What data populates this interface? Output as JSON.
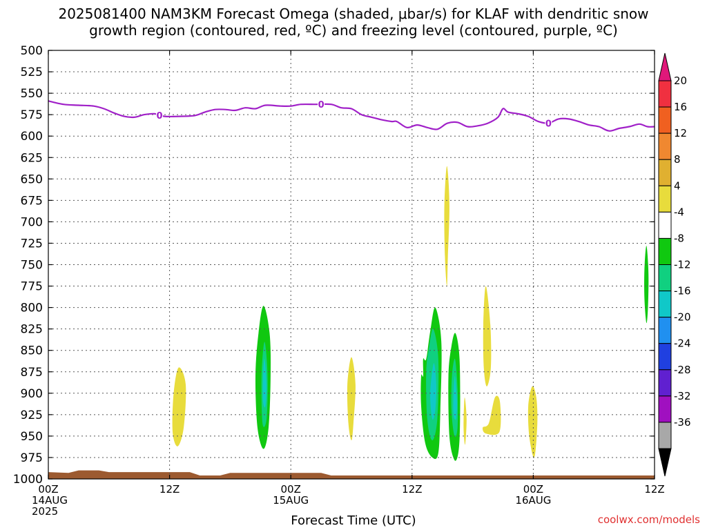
{
  "title_line1": "2025081400 NAM3KM Forecast Omega (shaded, μbar/s) for KLAF with dendritic snow",
  "title_line2": "growth region (contoured, red, ºC) and freezing level (contoured, purple, ºC)",
  "credit": "coolwx.com/models",
  "chart_data": {
    "type": "heatmap",
    "xlabel": "Forecast Time (UTC)",
    "ylabel": "",
    "x_ticks": [
      {
        "hour": 0,
        "lines": [
          "00Z",
          "14AUG",
          "2025"
        ]
      },
      {
        "hour": 12,
        "lines": [
          "12Z"
        ]
      },
      {
        "hour": 24,
        "lines": [
          "00Z",
          "15AUG"
        ]
      },
      {
        "hour": 36,
        "lines": [
          "12Z"
        ]
      },
      {
        "hour": 48,
        "lines": [
          "00Z",
          "16AUG"
        ]
      },
      {
        "hour": 60,
        "lines": [
          "12Z"
        ]
      }
    ],
    "xlim": [
      0,
      60
    ],
    "y_ticks": [
      500,
      525,
      550,
      575,
      600,
      625,
      650,
      675,
      700,
      725,
      750,
      775,
      800,
      825,
      850,
      875,
      900,
      925,
      950,
      975,
      1000
    ],
    "ylim": [
      500,
      1000
    ],
    "grid": true,
    "colorbar": {
      "labels": [
        "20",
        "16",
        "12",
        "8",
        "4",
        "-4",
        "-8",
        "-12",
        "-16",
        "-20",
        "-24",
        "-28",
        "-32",
        "-36"
      ],
      "bands": [
        {
          "from": 20,
          "to": 16,
          "color": "#f03040"
        },
        {
          "from": 16,
          "to": 12,
          "color": "#f06020"
        },
        {
          "from": 12,
          "to": 8,
          "color": "#f08830"
        },
        {
          "from": 8,
          "to": 4,
          "color": "#e0b030"
        },
        {
          "from": 4,
          "to": -4,
          "color": "#e8dc3c"
        },
        {
          "from": -4,
          "to": -8,
          "color": "#ffffff"
        },
        {
          "from": -8,
          "to": -12,
          "color": "#10c810"
        },
        {
          "from": -12,
          "to": -16,
          "color": "#10d080"
        },
        {
          "from": -16,
          "to": -20,
          "color": "#10c8c8"
        },
        {
          "from": -20,
          "to": -24,
          "color": "#2090f0"
        },
        {
          "from": -24,
          "to": -28,
          "color": "#2040e0"
        },
        {
          "from": -28,
          "to": -32,
          "color": "#6020d0"
        },
        {
          "from": -32,
          "to": -36,
          "color": "#a010c0"
        },
        {
          "from": -36,
          "to": -40,
          "color": "#a8a8a8"
        }
      ],
      "top_arrow_color": "#e0187a",
      "bottom_arrow_color": "#000000"
    },
    "freezing_level": {
      "label": "0",
      "color": "#a020c8",
      "label_hours": [
        11,
        27,
        49.5
      ],
      "points": [
        [
          0,
          559
        ],
        [
          1.5,
          563
        ],
        [
          3,
          564
        ],
        [
          4.5,
          565
        ],
        [
          5.5,
          568
        ],
        [
          6.5,
          573
        ],
        [
          7.5,
          577
        ],
        [
          8.5,
          578
        ],
        [
          9.5,
          575
        ],
        [
          10.5,
          574
        ],
        [
          11.5,
          577
        ],
        [
          13,
          577
        ],
        [
          14.5,
          576
        ],
        [
          15.5,
          572
        ],
        [
          16.5,
          569
        ],
        [
          17.5,
          569
        ],
        [
          18.5,
          570
        ],
        [
          19.5,
          567
        ],
        [
          20.5,
          568
        ],
        [
          21.5,
          564
        ],
        [
          23,
          565
        ],
        [
          24,
          565
        ],
        [
          25,
          563
        ],
        [
          26.5,
          563
        ],
        [
          28,
          563
        ],
        [
          29,
          567
        ],
        [
          30,
          568
        ],
        [
          31,
          575
        ],
        [
          32,
          578
        ],
        [
          33,
          581
        ],
        [
          34,
          583
        ],
        [
          34.5,
          583
        ],
        [
          35.5,
          590
        ],
        [
          36.5,
          587
        ],
        [
          37.5,
          590
        ],
        [
          38.5,
          592
        ],
        [
          39.5,
          585
        ],
        [
          40.5,
          584
        ],
        [
          41.5,
          589
        ],
        [
          42.5,
          588
        ],
        [
          43.5,
          585
        ],
        [
          44.5,
          578
        ],
        [
          45,
          568
        ],
        [
          45.5,
          572
        ],
        [
          46.5,
          574
        ],
        [
          47.5,
          577
        ],
        [
          48.5,
          583
        ],
        [
          49.5,
          585
        ],
        [
          50.5,
          580
        ],
        [
          51.5,
          580
        ],
        [
          52.5,
          583
        ],
        [
          53.5,
          587
        ],
        [
          54.5,
          589
        ],
        [
          55.5,
          594
        ],
        [
          56.5,
          591
        ],
        [
          57.5,
          589
        ],
        [
          58.5,
          586
        ],
        [
          59.3,
          589
        ],
        [
          60,
          589
        ]
      ]
    },
    "omega_areas": [
      {
        "color": "#e8dc3c",
        "points": [
          [
            12.9,
            870
          ],
          [
            13.6,
            890
          ],
          [
            13.4,
            940
          ],
          [
            12.8,
            962
          ],
          [
            12.3,
            945
          ],
          [
            12.4,
            900
          ]
        ]
      },
      {
        "color": "#10c810",
        "points": [
          [
            21.3,
            798
          ],
          [
            21.9,
            830
          ],
          [
            22.0,
            880
          ],
          [
            21.8,
            940
          ],
          [
            21.3,
            965
          ],
          [
            20.7,
            940
          ],
          [
            20.5,
            880
          ],
          [
            20.8,
            830
          ]
        ]
      },
      {
        "color": "#10d080",
        "points": [
          [
            21.4,
            840
          ],
          [
            21.7,
            880
          ],
          [
            21.6,
            930
          ],
          [
            21.2,
            935
          ],
          [
            21.1,
            880
          ]
        ]
      },
      {
        "color": "#10c8c8",
        "points": [
          [
            21.4,
            860
          ],
          [
            21.6,
            890
          ],
          [
            21.5,
            915
          ],
          [
            21.25,
            910
          ],
          [
            21.25,
            880
          ]
        ]
      },
      {
        "color": "#e8dc3c",
        "points": [
          [
            30.0,
            858
          ],
          [
            30.4,
            890
          ],
          [
            30.2,
            935
          ],
          [
            30.0,
            955
          ],
          [
            29.7,
            935
          ],
          [
            29.6,
            890
          ]
        ]
      },
      {
        "color": "#e8dc3c",
        "points": [
          [
            39.45,
            635
          ],
          [
            39.7,
            680
          ],
          [
            39.55,
            740
          ],
          [
            39.45,
            775
          ],
          [
            39.25,
            740
          ],
          [
            39.2,
            680
          ]
        ]
      },
      {
        "color": "#10c810",
        "points": [
          [
            37.1,
            860
          ],
          [
            37.4,
            860
          ],
          [
            37.8,
            828
          ],
          [
            38.3,
            800
          ],
          [
            38.9,
            840
          ],
          [
            38.8,
            920
          ],
          [
            38.6,
            970
          ],
          [
            38.0,
            975
          ],
          [
            37.3,
            958
          ],
          [
            36.9,
            915
          ],
          [
            36.9,
            880
          ],
          [
            37.1,
            880
          ]
        ]
      },
      {
        "color": "#10d080",
        "points": [
          [
            38.1,
            825
          ],
          [
            38.6,
            860
          ],
          [
            38.5,
            930
          ],
          [
            38.0,
            955
          ],
          [
            37.5,
            930
          ],
          [
            37.4,
            875
          ],
          [
            37.7,
            845
          ]
        ]
      },
      {
        "color": "#10c8c8",
        "points": [
          [
            38.15,
            865
          ],
          [
            38.4,
            890
          ],
          [
            38.3,
            920
          ],
          [
            38.0,
            930
          ],
          [
            37.8,
            900
          ]
        ]
      },
      {
        "color": "#10c810",
        "points": [
          [
            40.3,
            830
          ],
          [
            40.7,
            860
          ],
          [
            40.75,
            930
          ],
          [
            40.6,
            968
          ],
          [
            40.2,
            978
          ],
          [
            39.7,
            950
          ],
          [
            39.6,
            880
          ],
          [
            39.9,
            845
          ]
        ]
      },
      {
        "color": "#10d080",
        "points": [
          [
            40.25,
            860
          ],
          [
            40.5,
            895
          ],
          [
            40.5,
            940
          ],
          [
            40.2,
            950
          ],
          [
            39.9,
            920
          ],
          [
            39.95,
            880
          ]
        ]
      },
      {
        "color": "#10c8c8",
        "points": [
          [
            40.25,
            880
          ],
          [
            40.45,
            910
          ],
          [
            40.35,
            930
          ],
          [
            40.1,
            925
          ],
          [
            40.1,
            900
          ]
        ]
      },
      {
        "color": "#e8dc3c",
        "points": [
          [
            41.2,
            905
          ],
          [
            41.4,
            930
          ],
          [
            41.25,
            960
          ],
          [
            41.1,
            940
          ]
        ]
      },
      {
        "color": "#e8dc3c",
        "points": [
          [
            43.3,
            775
          ],
          [
            43.75,
            820
          ],
          [
            43.8,
            870
          ],
          [
            43.4,
            892
          ],
          [
            43.1,
            870
          ],
          [
            43.05,
            820
          ]
        ]
      },
      {
        "color": "#e8dc3c",
        "points": [
          [
            44.2,
            905
          ],
          [
            44.7,
            910
          ],
          [
            44.65,
            945
          ],
          [
            43.3,
            947
          ],
          [
            43.0,
            940
          ],
          [
            43.6,
            935
          ]
        ]
      },
      {
        "color": "#e8dc3c",
        "points": [
          [
            47.9,
            892
          ],
          [
            48.3,
            905
          ],
          [
            48.4,
            935
          ],
          [
            48.1,
            975
          ],
          [
            47.6,
            950
          ],
          [
            47.5,
            915
          ]
        ]
      },
      {
        "color": "#10c810",
        "points": [
          [
            59.2,
            728
          ],
          [
            59.4,
            760
          ],
          [
            59.35,
            800
          ],
          [
            59.2,
            818
          ],
          [
            59.0,
            790
          ],
          [
            59.0,
            755
          ]
        ]
      }
    ],
    "ground": {
      "color": "#9c5a30",
      "points": [
        [
          0,
          992
        ],
        [
          2,
          993
        ],
        [
          3,
          990
        ],
        [
          5,
          990
        ],
        [
          6,
          992
        ],
        [
          14,
          992
        ],
        [
          15,
          996
        ],
        [
          17,
          996
        ],
        [
          18,
          993
        ],
        [
          27,
          993
        ],
        [
          28,
          996
        ],
        [
          60,
          996
        ]
      ]
    }
  }
}
